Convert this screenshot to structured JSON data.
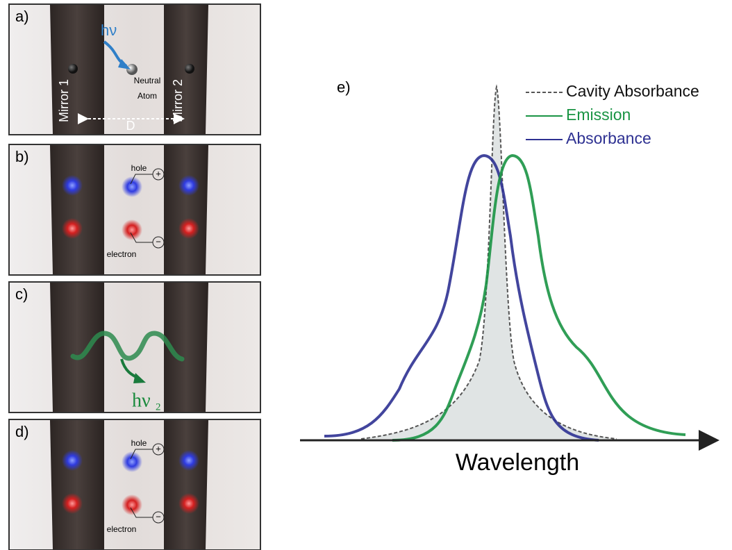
{
  "panels": [
    {
      "label": "a)",
      "photon": "hν",
      "atom": [
        "Neutral",
        "Atom"
      ],
      "mirrors": [
        "Mirror 1",
        "Mirror 2"
      ],
      "distance": "D"
    },
    {
      "label": "b)",
      "hole": "hole",
      "hole_sign": "+",
      "electron": "electron",
      "electron_sign": "−"
    },
    {
      "label": "c)",
      "photon": "hν",
      "photon_subscript": "2"
    },
    {
      "label": "d)",
      "hole": "hole",
      "hole_sign": "+",
      "electron": "electron",
      "electron_sign": "−"
    }
  ],
  "spectrum": {
    "label": "e)",
    "x_axis_label": "Wavelength",
    "legend": [
      {
        "name": "Cavity Absorbance",
        "color": "#555555"
      },
      {
        "name": "Emission",
        "color": "#1a9444"
      },
      {
        "name": "Absorbance",
        "color": "#2e3192"
      }
    ]
  }
}
